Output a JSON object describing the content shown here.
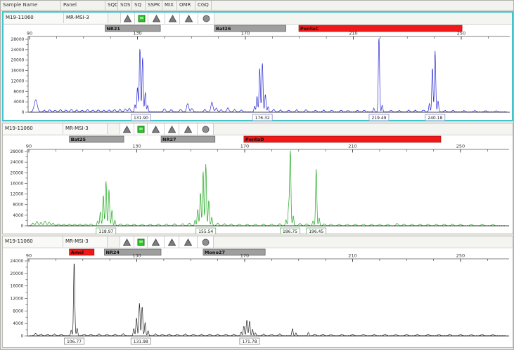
{
  "window": {
    "app": "fragment-analysis-viewer",
    "bg": "#eceae6",
    "selected_border": "#43c4cb"
  },
  "header": {
    "columns": [
      "Sample Name",
      "Panel",
      "SQD",
      "SOS",
      "SQ",
      "SSPK",
      "MIX",
      "OMR",
      "CGQ"
    ],
    "flag_icons": [
      "warning-triangle",
      "pass-square",
      "warning-triangle",
      "warning-triangle",
      "warning-triangle",
      "dot-circle"
    ],
    "icon_colors": {
      "triangle": "#7d7d7d",
      "triangle_edge": "#4f4f4f",
      "square": "#35c22f",
      "square_edge": "#157a12",
      "circle": "#8f8f8f",
      "circle_edge": "#5c5c5c"
    }
  },
  "axis": {
    "x_min": 90,
    "x_max": 250,
    "x_tick_labels": [
      90,
      130,
      170,
      210,
      250
    ],
    "x_minor_step": 10
  },
  "chart_data": {
    "type": "line",
    "note": "three capillary electrophoresis traces; data in panels[]"
  },
  "panels": [
    {
      "sample_name": "M19-11060",
      "panel_name": "MR-MSI-3",
      "selected": true,
      "trace_color": "#2a2ad2",
      "label_border": "#8a8ad0",
      "y_max_label": 28000,
      "y_label_step": 4000,
      "jitter": 260,
      "markers": [
        {
          "label": "NR21",
          "bp_start": 118.0,
          "bp_end": 138.5,
          "color": "#9f9f9f",
          "edge": "#555555"
        },
        {
          "label": "Bat26",
          "bp_start": 158.5,
          "bp_end": 185.0,
          "color": "#9f9f9f",
          "edge": "#555555"
        },
        {
          "label": "PentaC",
          "bp_start": 189.8,
          "bp_end": 250.3,
          "color": "#f01818",
          "edge": "#8a0f0f"
        }
      ],
      "peaks": [
        [
          92.3,
          4600,
          0.8
        ],
        [
          129.1,
          2800
        ],
        [
          130.0,
          9500
        ],
        [
          130.9,
          24500
        ],
        [
          131.9,
          21000
        ],
        [
          132.9,
          7500
        ],
        [
          133.8,
          2400
        ],
        [
          173.4,
          2200
        ],
        [
          174.3,
          6000
        ],
        [
          175.3,
          17000
        ],
        [
          176.3,
          19000
        ],
        [
          177.4,
          6800
        ],
        [
          178.4,
          2000
        ],
        [
          217.6,
          1400
        ],
        [
          219.5,
          28800
        ],
        [
          220.7,
          2600
        ],
        [
          238.2,
          3200
        ],
        [
          239.3,
          17000
        ],
        [
          240.3,
          23500
        ],
        [
          241.4,
          4200
        ]
      ],
      "noise": [
        [
          95.5,
          600
        ],
        [
          97.5,
          800
        ],
        [
          99.5,
          650
        ],
        [
          101.5,
          850
        ],
        [
          103.5,
          700
        ],
        [
          105.5,
          950
        ],
        [
          107.5,
          700
        ],
        [
          109.5,
          600
        ],
        [
          111.5,
          800
        ],
        [
          113.5,
          650
        ],
        [
          115.5,
          750
        ],
        [
          117.5,
          600
        ],
        [
          119.5,
          700
        ],
        [
          121.5,
          850
        ],
        [
          123.5,
          950
        ],
        [
          125.5,
          1100
        ],
        [
          127,
          1300
        ],
        [
          140,
          1200
        ],
        [
          142.5,
          800
        ],
        [
          146,
          900
        ],
        [
          148.6,
          3200
        ],
        [
          150.2,
          1300
        ],
        [
          155,
          900
        ],
        [
          157.6,
          3700
        ],
        [
          159.2,
          1400
        ],
        [
          161,
          800
        ],
        [
          163.5,
          1500
        ],
        [
          166,
          850
        ],
        [
          168.5,
          700
        ],
        [
          180.5,
          950
        ],
        [
          183,
          700
        ],
        [
          186,
          600
        ],
        [
          189,
          750
        ],
        [
          192.5,
          800
        ],
        [
          196,
          550
        ],
        [
          199,
          650
        ],
        [
          202,
          550
        ],
        [
          205.5,
          600
        ],
        [
          208,
          500
        ],
        [
          211.5,
          550
        ],
        [
          214,
          600
        ],
        [
          224,
          550
        ],
        [
          227,
          500
        ],
        [
          230.5,
          650
        ],
        [
          233,
          600
        ],
        [
          236,
          700
        ],
        [
          244,
          500
        ],
        [
          247,
          550
        ],
        [
          251,
          450
        ],
        [
          255,
          500
        ],
        [
          259,
          450
        ],
        [
          263,
          400
        ]
      ],
      "peak_labels": [
        {
          "text": "131.90",
          "bp": 131.3
        },
        {
          "text": "176.32",
          "bp": 176.3
        },
        {
          "text": "219.49",
          "bp": 219.5
        },
        {
          "text": "240.18",
          "bp": 240.3
        }
      ]
    },
    {
      "sample_name": "M19-11060",
      "panel_name": "MR-MSI-3",
      "selected": false,
      "trace_color": "#1fa81f",
      "label_border": "#6db36d",
      "y_max_label": 28000,
      "y_label_step": 4000,
      "jitter": 180,
      "markers": [
        {
          "label": "Bat25",
          "bp_start": 105.0,
          "bp_end": 125.2,
          "color": "#9f9f9f",
          "edge": "#555555"
        },
        {
          "label": "NR27",
          "bp_start": 139.0,
          "bp_end": 159.0,
          "color": "#9f9f9f",
          "edge": "#555555"
        },
        {
          "label": "PentaD",
          "bp_start": 169.7,
          "bp_end": 242.7,
          "color": "#f01818",
          "edge": "#8a0f0f"
        }
      ],
      "peaks": [
        [
          115.5,
          1800
        ],
        [
          116.5,
          5200
        ],
        [
          117.6,
          11500
        ],
        [
          118.6,
          16800
        ],
        [
          119.7,
          13500
        ],
        [
          120.8,
          5800
        ],
        [
          121.9,
          2000
        ],
        [
          151.6,
          2000
        ],
        [
          152.6,
          6200
        ],
        [
          153.6,
          12500
        ],
        [
          154.6,
          20500
        ],
        [
          155.6,
          23200
        ],
        [
          156.7,
          9500
        ],
        [
          157.8,
          3200
        ],
        [
          185.3,
          2200
        ],
        [
          186.3,
          7500
        ],
        [
          186.9,
          29200
        ],
        [
          188.0,
          3600
        ],
        [
          195.3,
          1800
        ],
        [
          196.5,
          21200
        ],
        [
          197.6,
          2800
        ]
      ],
      "noise": [
        [
          91.5,
          900
        ],
        [
          93,
          1500
        ],
        [
          94.5,
          1100
        ],
        [
          96,
          1650
        ],
        [
          97.5,
          1250
        ],
        [
          99,
          850
        ],
        [
          101,
          600
        ],
        [
          103,
          500
        ],
        [
          105,
          550
        ],
        [
          107,
          500
        ],
        [
          109,
          600
        ],
        [
          111,
          550
        ],
        [
          113,
          650
        ],
        [
          124,
          700
        ],
        [
          126.5,
          550
        ],
        [
          129,
          600
        ],
        [
          132,
          500
        ],
        [
          135,
          550
        ],
        [
          138,
          600
        ],
        [
          141,
          650
        ],
        [
          144,
          700
        ],
        [
          147,
          750
        ],
        [
          149.5,
          900
        ],
        [
          160,
          900
        ],
        [
          162.5,
          700
        ],
        [
          165,
          600
        ],
        [
          168,
          550
        ],
        [
          171,
          500
        ],
        [
          174,
          550
        ],
        [
          177,
          600
        ],
        [
          180,
          650
        ],
        [
          183,
          700
        ],
        [
          190.5,
          800
        ],
        [
          193,
          650
        ],
        [
          199.5,
          700
        ],
        [
          202,
          550
        ],
        [
          205,
          500
        ],
        [
          208,
          550
        ],
        [
          211,
          500
        ],
        [
          214,
          550
        ],
        [
          217,
          500
        ],
        [
          220,
          550
        ],
        [
          223,
          500
        ],
        [
          226.5,
          800
        ],
        [
          229,
          600
        ],
        [
          232,
          550
        ],
        [
          235,
          500
        ],
        [
          238,
          550
        ],
        [
          241,
          500
        ],
        [
          244,
          550
        ],
        [
          247,
          600
        ],
        [
          250,
          500
        ],
        [
          254,
          450
        ],
        [
          258,
          500
        ],
        [
          262,
          450
        ]
      ],
      "peak_labels": [
        {
          "text": "118.97",
          "bp": 118.6
        },
        {
          "text": "155.54",
          "bp": 155.6
        },
        {
          "text": "186.75",
          "bp": 186.8
        },
        {
          "text": "196.45",
          "bp": 196.5
        }
      ]
    },
    {
      "sample_name": "M19-11060",
      "panel_name": "MR-MSI-3",
      "selected": false,
      "trace_color": "#222222",
      "label_border": "#8a8a8a",
      "y_max_label": 24000,
      "y_label_step": 4000,
      "jitter": 130,
      "markers": [
        {
          "label": "Amel",
          "bp_start": 105.0,
          "bp_end": 114.2,
          "color": "#f01818",
          "edge": "#8a0f0f"
        },
        {
          "label": "NR24",
          "bp_start": 118.0,
          "bp_end": 139.0,
          "color": "#9f9f9f",
          "edge": "#555555"
        },
        {
          "label": "Mono27",
          "bp_start": 154.6,
          "bp_end": 177.6,
          "color": "#9f9f9f",
          "edge": "#555555"
        }
      ],
      "peaks": [
        [
          105.7,
          1800
        ],
        [
          106.8,
          23800
        ],
        [
          107.9,
          2400
        ],
        [
          128.9,
          2300
        ],
        [
          129.9,
          5800
        ],
        [
          131.0,
          10400
        ],
        [
          132.0,
          9300
        ],
        [
          133.1,
          4200
        ],
        [
          134.2,
          1600
        ],
        [
          168.7,
          1300
        ],
        [
          169.7,
          3100
        ],
        [
          170.8,
          5100
        ],
        [
          171.8,
          4700
        ],
        [
          172.9,
          2100
        ],
        [
          174.0,
          950
        ],
        [
          187.7,
          2300
        ],
        [
          189.0,
          850
        ],
        [
          193.6,
          1050
        ]
      ],
      "noise": [
        [
          92.5,
          750
        ],
        [
          94.5,
          550
        ],
        [
          97,
          500
        ],
        [
          99.5,
          600
        ],
        [
          102,
          500
        ],
        [
          110.5,
          550
        ],
        [
          113,
          500
        ],
        [
          116,
          600
        ],
        [
          119,
          500
        ],
        [
          122,
          550
        ],
        [
          125,
          650
        ],
        [
          137,
          600
        ],
        [
          139.5,
          500
        ],
        [
          142,
          550
        ],
        [
          145,
          500
        ],
        [
          148,
          600
        ],
        [
          151,
          550
        ],
        [
          154,
          500
        ],
        [
          157,
          550
        ],
        [
          160,
          500
        ],
        [
          163,
          550
        ],
        [
          166,
          500
        ],
        [
          177,
          550
        ],
        [
          180,
          500
        ],
        [
          183,
          600
        ],
        [
          196,
          550
        ],
        [
          199,
          500
        ],
        [
          202,
          450
        ],
        [
          206,
          500
        ],
        [
          210,
          450
        ],
        [
          214,
          500
        ],
        [
          218,
          450
        ],
        [
          222,
          500
        ],
        [
          226,
          450
        ],
        [
          230,
          500
        ],
        [
          234,
          450
        ],
        [
          238,
          500
        ],
        [
          242,
          450
        ],
        [
          246,
          500
        ],
        [
          250,
          450
        ],
        [
          254,
          400
        ],
        [
          258,
          450
        ],
        [
          262,
          400
        ]
      ],
      "peak_labels": [
        {
          "text": "106.77",
          "bp": 106.8
        },
        {
          "text": "131.98",
          "bp": 131.5
        },
        {
          "text": "171.78",
          "bp": 171.8
        }
      ]
    }
  ]
}
